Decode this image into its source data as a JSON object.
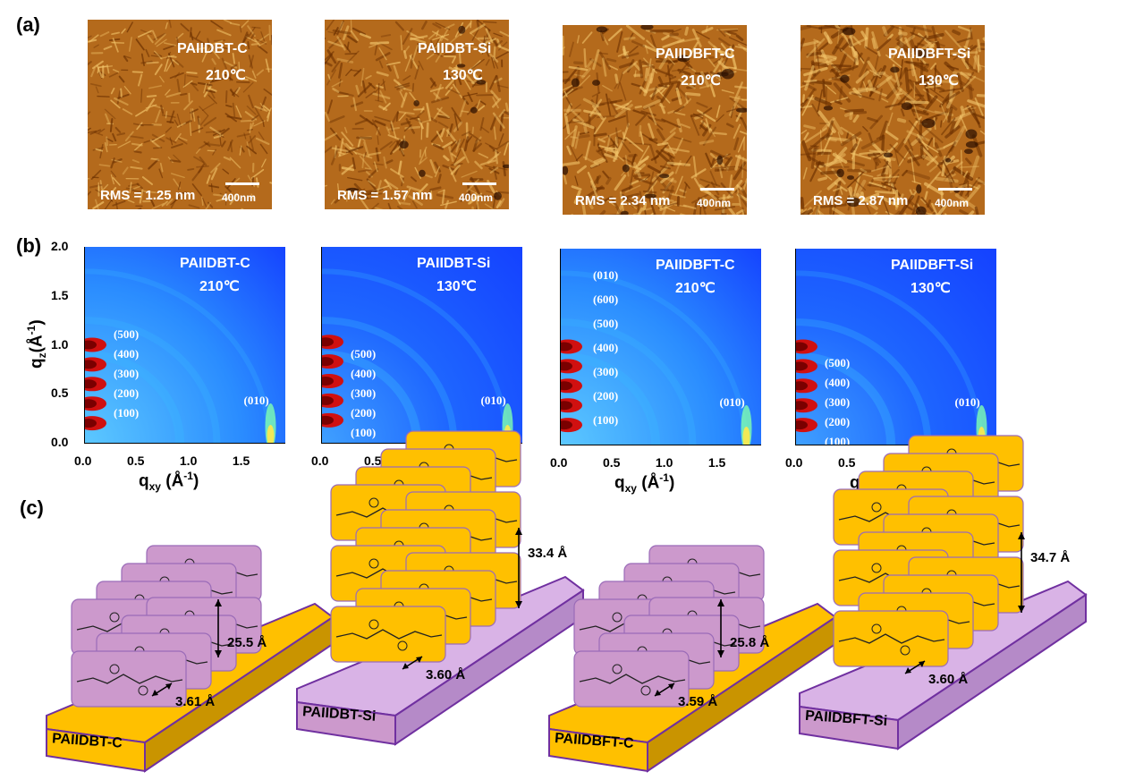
{
  "panel_labels": [
    "(a)",
    "(b)",
    "(c)"
  ],
  "colors": {
    "afm_dark": "#6a2f00",
    "afm_mid": "#b46a1c",
    "afm_light": "#f2c46a",
    "giwaxs_bg": "#1440ff",
    "giwaxs_ring": "#38b6ff",
    "giwaxs_hot": "#d01010",
    "orange_sheet": "#ffc000",
    "purple_sheet": "#cc99cc",
    "purple_slab": "#b58ac8",
    "slab_border": "#7030a0"
  },
  "afm": [
    {
      "name": "PAIIDBT-C",
      "temp": "210℃",
      "rms": "RMS = 1.25 nm",
      "scale": "400nm"
    },
    {
      "name": "PAIIDBT-Si",
      "temp": "130℃",
      "rms": "RMS = 1.57 nm",
      "scale": "400nm"
    },
    {
      "name": "PAIIDBFT-C",
      "temp": "210℃",
      "rms": "RMS = 2.34 nm",
      "scale": "400nm"
    },
    {
      "name": "PAIIDBFT-Si",
      "temp": "130℃",
      "rms": "RMS = 2.87 nm",
      "scale": "400nm"
    }
  ],
  "giwaxs": {
    "y_title_main": "q",
    "y_title_sub": "z",
    "y_title_rest": "(Å",
    "y_title_sup": "-1",
    "y_title_end": ")",
    "x_title_main": "q",
    "x_title_sub": "xy",
    "x_title_rest": " (Å",
    "x_title_sup": "-1",
    "x_title_end": ")",
    "y_ticks": [
      "2.0",
      "1.5",
      "1.0",
      "0.5",
      "0.0"
    ],
    "x_ticks": [
      "0.0",
      "0.5",
      "1.0",
      "1.5"
    ],
    "ylim": [
      0.0,
      2.0
    ],
    "xlim": [
      0.0,
      1.9
    ],
    "plots": [
      {
        "name": "PAIIDBT-C",
        "temp": "210℃",
        "peaks": [
          "(500)",
          "(400)",
          "(300)",
          "(200)",
          "(100)"
        ],
        "side_peak": "(010)"
      },
      {
        "name": "PAIIDBT-Si",
        "temp": "130℃",
        "peaks": [
          "(500)",
          "(400)",
          "(300)",
          "(200)",
          "(100)"
        ],
        "side_peak": "(010)"
      },
      {
        "name": "PAIIDBFT-C",
        "temp": "210℃",
        "peaks": [
          "(010)",
          "(600)",
          "(500)",
          "(400)",
          "(300)",
          "(200)",
          "(100)"
        ],
        "side_peak": "(010)"
      },
      {
        "name": "PAIIDBFT-Si",
        "temp": "130℃",
        "peaks": [
          "(500)",
          "(400)",
          "(300)",
          "(200)",
          "(100)"
        ],
        "side_peak": "(010)"
      }
    ]
  },
  "schematics": [
    {
      "name": "PAIIDBT-C",
      "lamellar": "25.5 Å",
      "pi_stack": "3.61 Å"
    },
    {
      "name": "PAIIDBT-Si",
      "lamellar": "33.4 Å",
      "pi_stack": "3.60 Å"
    },
    {
      "name": "PAIIDBFT-C",
      "lamellar": "25.8 Å",
      "pi_stack": "3.59 Å"
    },
    {
      "name": "PAIIDBFT-Si",
      "lamellar": "34.7 Å",
      "pi_stack": "3.60 Å"
    }
  ]
}
